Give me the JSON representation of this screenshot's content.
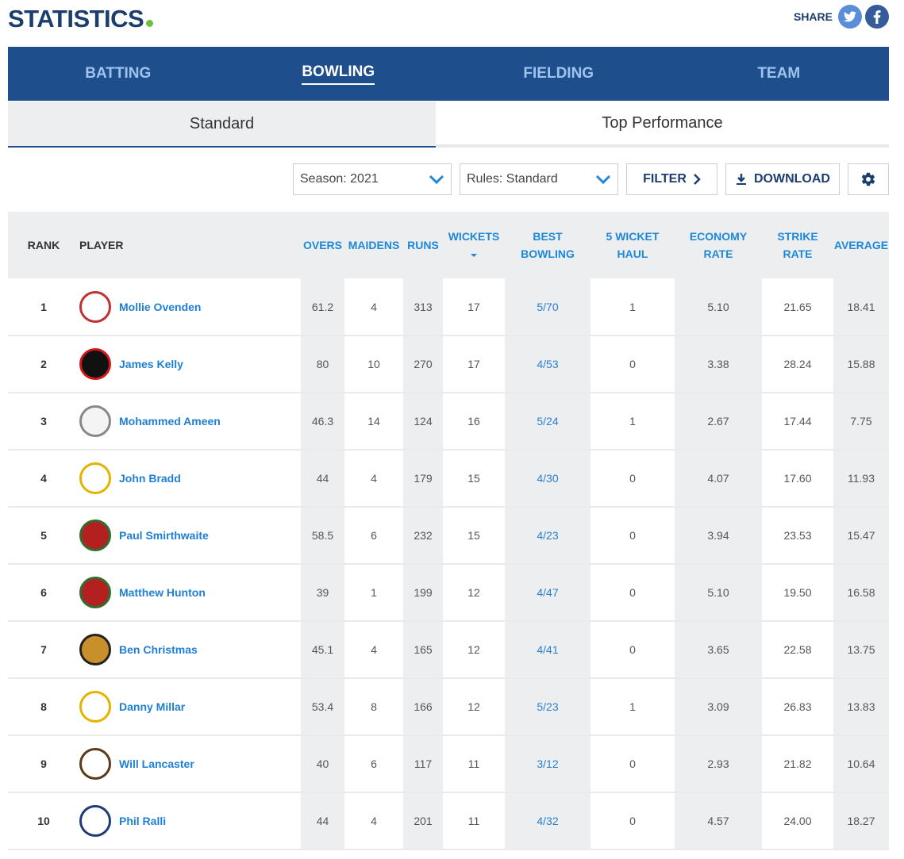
{
  "header": {
    "title": "STATISTICS",
    "share_label": "SHARE"
  },
  "tabs": [
    "BATTING",
    "BOWLING",
    "FIELDING",
    "TEAM"
  ],
  "subtabs": [
    "Standard",
    "Top Performance"
  ],
  "controls": {
    "season": "Season: 2021",
    "rules": "Rules: Standard",
    "filter": "FILTER",
    "download": "DOWNLOAD"
  },
  "table": {
    "headers": {
      "rank": "RANK",
      "player": "PLAYER",
      "overs": "OVERS",
      "maidens": "MAIDENS",
      "runs": "RUNS",
      "wickets": "WICKETS",
      "best_1": "BEST",
      "best_2": "BOWLING",
      "haul_1": "5 WICKET",
      "haul_2": "HAUL",
      "econ_1": "ECONOMY",
      "econ_2": "RATE",
      "strike_1": "STRIKE",
      "strike_2": "RATE",
      "average": "AVERAGE"
    },
    "rows": [
      {
        "rank": "1",
        "player": "Mollie Ovenden",
        "overs": "61.2",
        "maidens": "4",
        "runs": "313",
        "wickets": "17",
        "best": "5/70",
        "haul": "1",
        "econ": "5.10",
        "strike": "21.65",
        "avg": "18.41",
        "badge": "red-cross-crest",
        "color": "#ffffff",
        "ring": "#c23030"
      },
      {
        "rank": "2",
        "player": "James Kelly",
        "overs": "80",
        "maidens": "10",
        "runs": "270",
        "wickets": "17",
        "best": "4/53",
        "haul": "0",
        "econ": "3.38",
        "strike": "28.24",
        "avg": "15.88",
        "badge": "black-red-n",
        "color": "#111111",
        "ring": "#d01818"
      },
      {
        "rank": "3",
        "player": "Mohammed Ameen",
        "overs": "46.3",
        "maidens": "14",
        "runs": "124",
        "wickets": "16",
        "best": "5/24",
        "haul": "1",
        "econ": "2.67",
        "strike": "17.44",
        "avg": "7.75",
        "badge": "grey-crest",
        "color": "#f4f4f4",
        "ring": "#888888"
      },
      {
        "rank": "4",
        "player": "John Bradd",
        "overs": "44",
        "maidens": "4",
        "runs": "179",
        "wickets": "15",
        "best": "4/30",
        "haul": "0",
        "econ": "4.07",
        "strike": "17.60",
        "avg": "11.93",
        "badge": "oak-leaf",
        "color": "#ffffff",
        "ring": "#e2b400"
      },
      {
        "rank": "5",
        "player": "Paul Smirthwaite",
        "overs": "58.5",
        "maidens": "6",
        "runs": "232",
        "wickets": "15",
        "best": "4/23",
        "haul": "0",
        "econ": "3.94",
        "strike": "23.53",
        "avg": "15.47",
        "badge": "red-rose",
        "color": "#b42020",
        "ring": "#2f6e2f"
      },
      {
        "rank": "6",
        "player": "Matthew Hunton",
        "overs": "39",
        "maidens": "1",
        "runs": "199",
        "wickets": "12",
        "best": "4/47",
        "haul": "0",
        "econ": "5.10",
        "strike": "19.50",
        "avg": "16.58",
        "badge": "red-rose",
        "color": "#b42020",
        "ring": "#2f6e2f"
      },
      {
        "rank": "7",
        "player": "Ben Christmas",
        "overs": "45.1",
        "maidens": "4",
        "runs": "165",
        "wickets": "12",
        "best": "4/41",
        "haul": "0",
        "econ": "3.65",
        "strike": "22.58",
        "avg": "13.75",
        "badge": "striped-crest",
        "color": "#c8902a",
        "ring": "#222222"
      },
      {
        "rank": "8",
        "player": "Danny Millar",
        "overs": "53.4",
        "maidens": "8",
        "runs": "166",
        "wickets": "12",
        "best": "5/23",
        "haul": "1",
        "econ": "3.09",
        "strike": "26.83",
        "avg": "13.83",
        "badge": "oak-leaf",
        "color": "#ffffff",
        "ring": "#e2b400"
      },
      {
        "rank": "9",
        "player": "Will Lancaster",
        "overs": "40",
        "maidens": "6",
        "runs": "117",
        "wickets": "11",
        "best": "3/12",
        "haul": "0",
        "econ": "2.93",
        "strike": "21.82",
        "avg": "10.64",
        "badge": "cockerel",
        "color": "#ffffff",
        "ring": "#5a3a1a"
      },
      {
        "rank": "10",
        "player": "Phil Ralli",
        "overs": "44",
        "maidens": "4",
        "runs": "201",
        "wickets": "11",
        "best": "4/32",
        "haul": "0",
        "econ": "4.57",
        "strike": "24.00",
        "avg": "18.27",
        "badge": "knight",
        "color": "#ffffff",
        "ring": "#1d3c78"
      }
    ]
  }
}
